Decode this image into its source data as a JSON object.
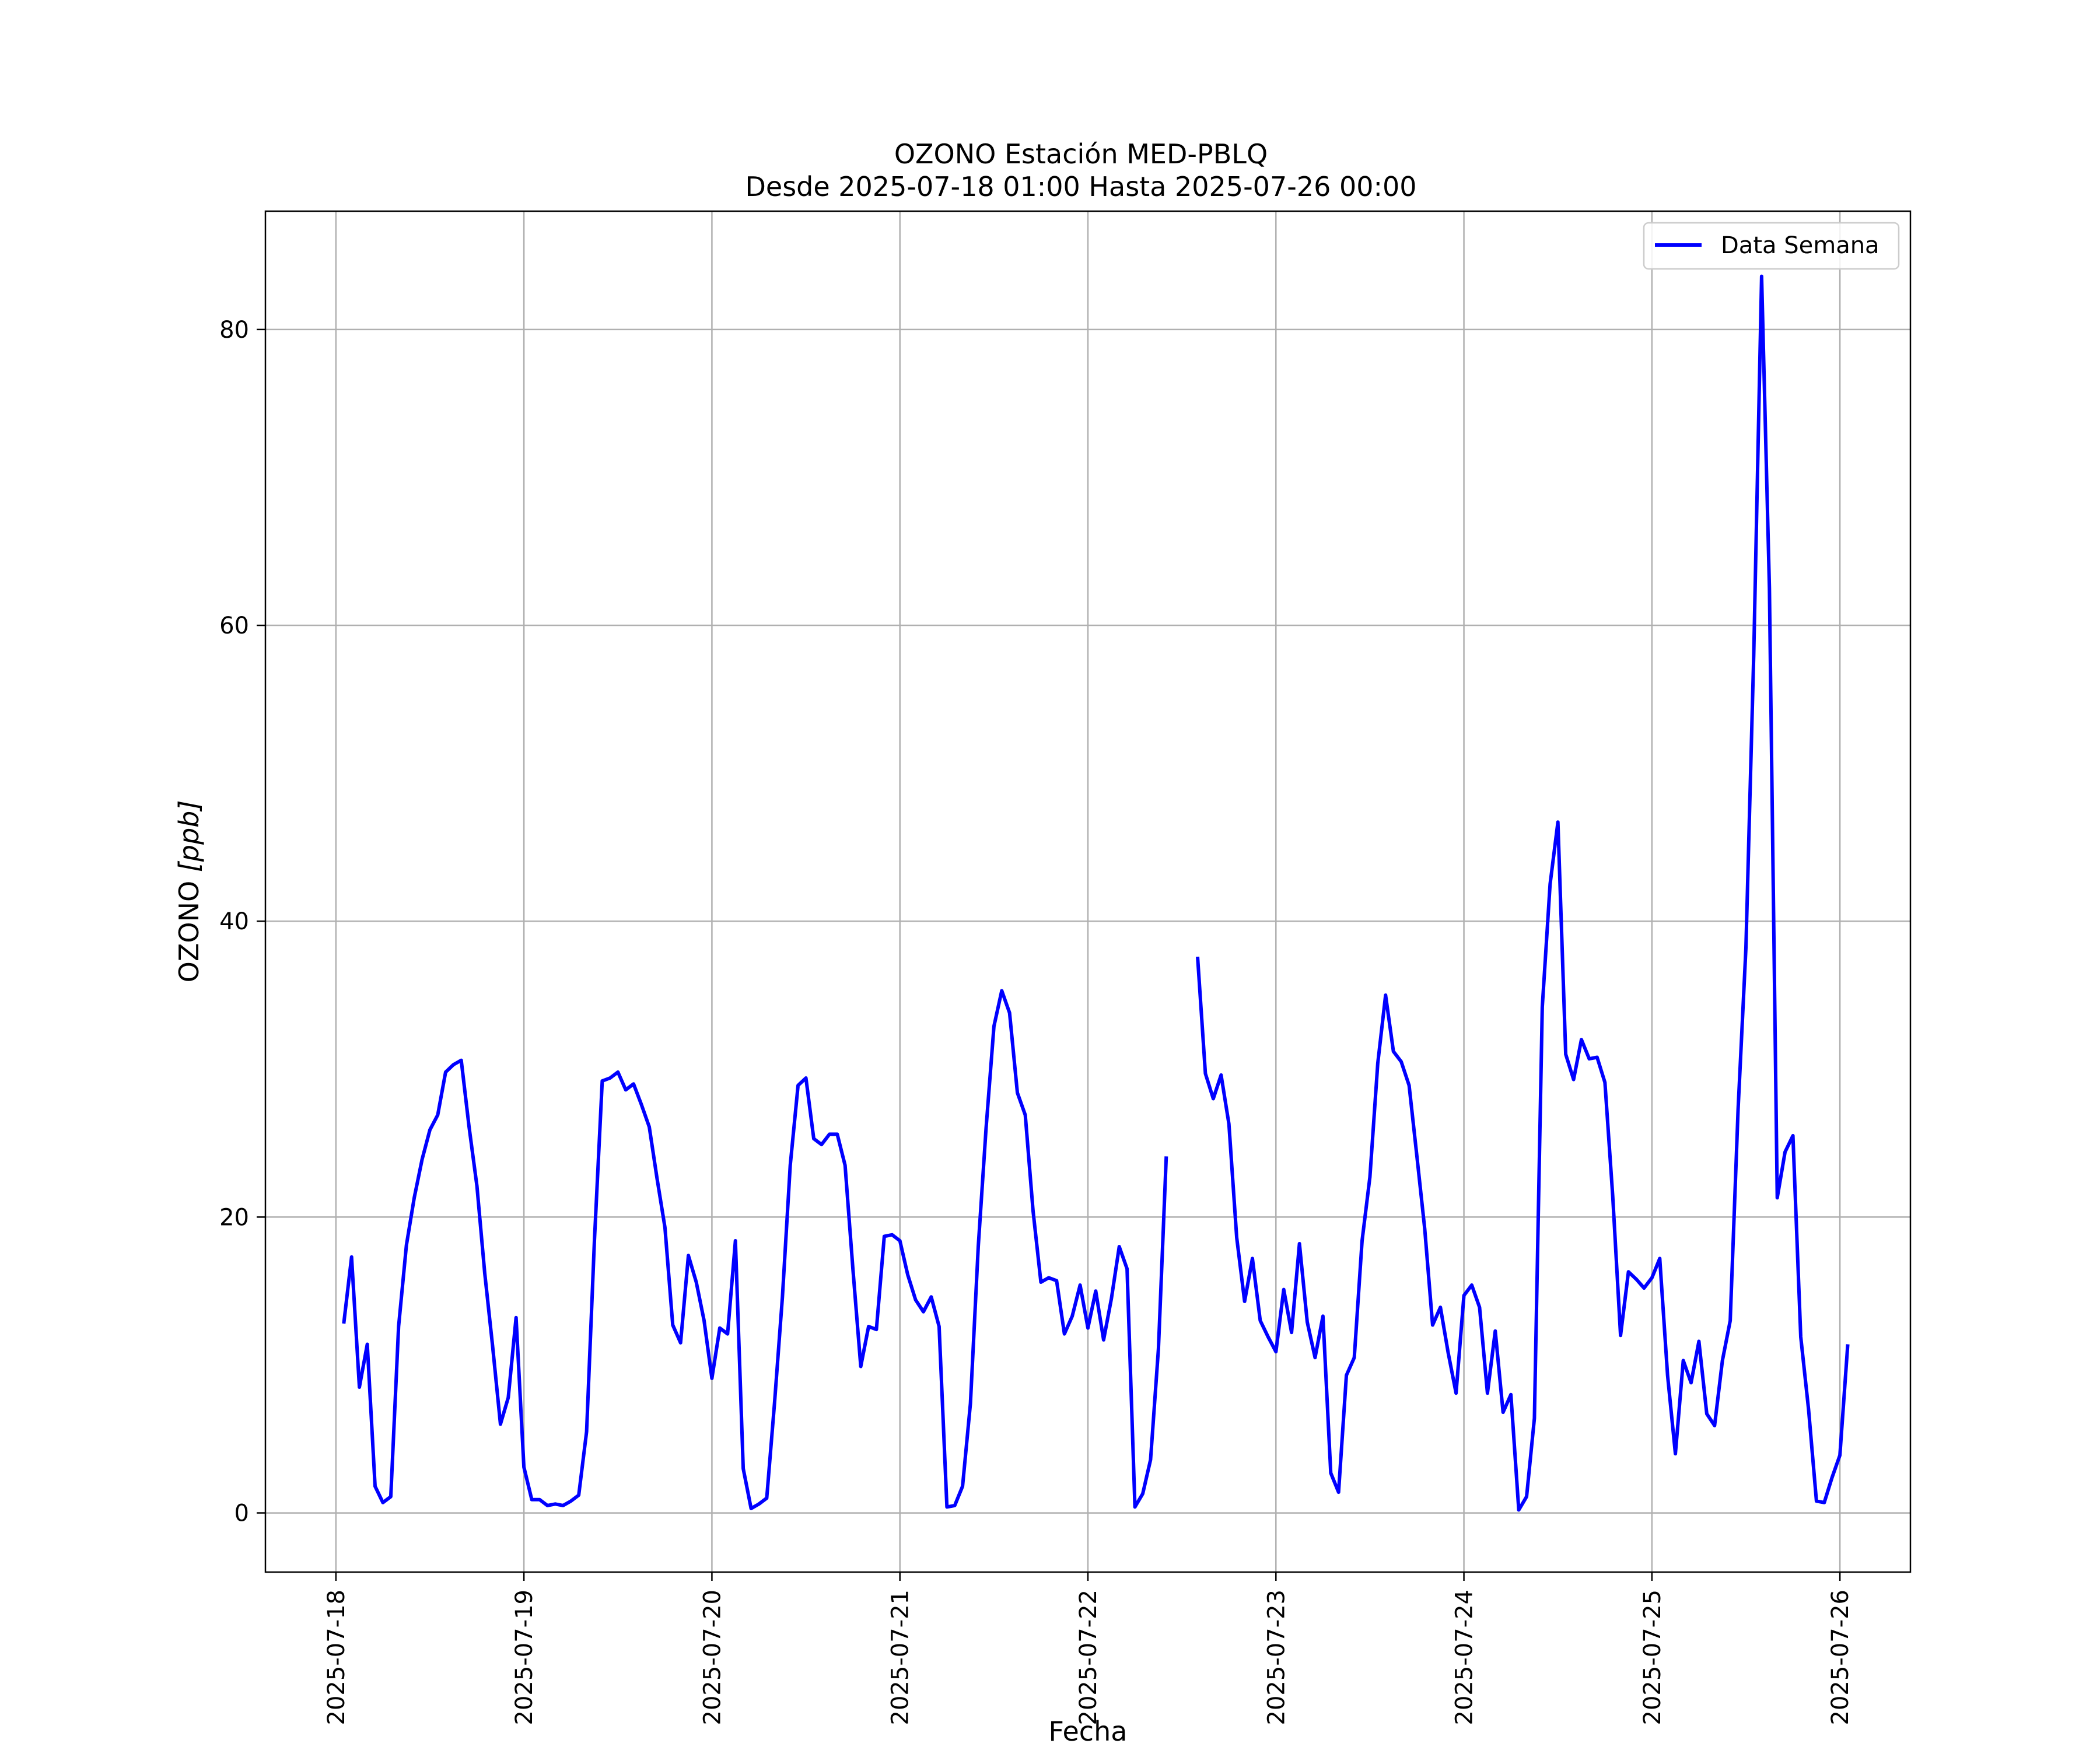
{
  "chart_data": {
    "type": "line",
    "title": "OZONO Estación MED-PBLQ",
    "subtitle": "Desde 2025-07-18 01:00 Hasta 2025-07-26 00:00",
    "xlabel": "Fecha",
    "ylabel": "OZONO [ppb]",
    "ylabel_main": "OZONO ",
    "ylabel_unit": "[ppb]",
    "x_start": "2025-07-18 01:00",
    "x_step_hours": 1,
    "xlim": [
      "2025-07-17 15:00",
      "2025-07-26 09:00"
    ],
    "ylim": [
      -4,
      88
    ],
    "x_ticks": [
      "2025-07-18",
      "2025-07-19",
      "2025-07-20",
      "2025-07-21",
      "2025-07-22",
      "2025-07-23",
      "2025-07-24",
      "2025-07-25",
      "2025-07-26"
    ],
    "y_ticks": [
      0,
      20,
      40,
      60,
      80
    ],
    "grid": true,
    "legend_position": "top-right",
    "line_color": "#0000ff",
    "series": [
      {
        "name": "Data Semana",
        "color": "#0000ff",
        "values": [
          12.8,
          17.3,
          8.5,
          11.4,
          1.8,
          0.7,
          1.1,
          12.6,
          18.1,
          21.3,
          23.9,
          25.9,
          26.9,
          29.8,
          30.3,
          30.6,
          26.1,
          22.1,
          16.2,
          11.3,
          6.0,
          7.8,
          13.2,
          3.1,
          0.9,
          0.9,
          0.5,
          0.6,
          0.5,
          0.8,
          1.2,
          5.5,
          18.4,
          29.2,
          29.4,
          29.8,
          28.6,
          29.0,
          27.6,
          26.1,
          22.6,
          19.3,
          12.7,
          11.5,
          17.4,
          15.6,
          13.0,
          9.1,
          12.5,
          12.1,
          18.4,
          3.0,
          0.3,
          0.6,
          1.0,
          7.5,
          14.6,
          23.5,
          28.9,
          29.4,
          25.3,
          24.9,
          25.6,
          25.6,
          23.5,
          16.5,
          9.9,
          12.6,
          12.4,
          18.7,
          18.8,
          18.4,
          16.1,
          14.4,
          13.6,
          14.6,
          12.6,
          0.4,
          0.5,
          1.8,
          7.4,
          18.0,
          26.0,
          32.9,
          35.3,
          33.8,
          28.4,
          26.9,
          20.4,
          15.6,
          15.9,
          15.7,
          12.1,
          13.3,
          15.4,
          12.5,
          15.0,
          11.7,
          14.5,
          18.0,
          16.5,
          0.4,
          1.3,
          3.6,
          11.1,
          24.1,
          null,
          null,
          null,
          37.6,
          29.7,
          28.0,
          29.6,
          26.3,
          18.6,
          14.3,
          17.2,
          13.0,
          11.9,
          10.9,
          15.1,
          12.2,
          18.2,
          12.9,
          10.5,
          13.3,
          2.7,
          1.4,
          9.3,
          10.5,
          18.4,
          22.7,
          30.4,
          35.0,
          31.2,
          30.5,
          28.9,
          24.1,
          19.2,
          12.7,
          13.9,
          10.8,
          8.1,
          14.7,
          15.4,
          13.9,
          8.1,
          12.3,
          6.8,
          8.0,
          0.2,
          1.1,
          6.4,
          34.2,
          42.5,
          46.7,
          31.0,
          29.3,
          32.0,
          30.7,
          30.8,
          29.1,
          21.4,
          12.0,
          16.3,
          15.8,
          15.2,
          15.9,
          17.2,
          9.3,
          4.0,
          10.3,
          8.8,
          11.6,
          6.7,
          5.9,
          10.3,
          13.0,
          27.3,
          38.2,
          58.0,
          83.6,
          62.5,
          21.3,
          24.4,
          25.5,
          11.9,
          7.0,
          0.8,
          0.7,
          2.4,
          3.9,
          11.4
        ]
      }
    ]
  }
}
